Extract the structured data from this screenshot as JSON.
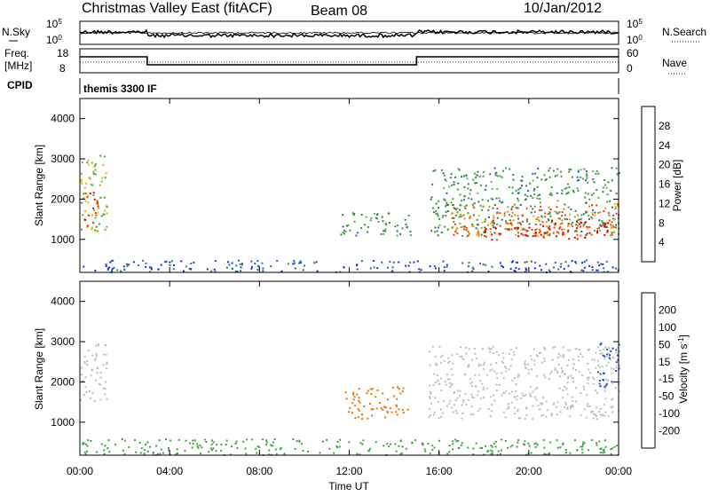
{
  "header": {
    "title": "Christmas Valley East (fitACF)",
    "beam": "Beam 08",
    "date": "10/Jan/2012"
  },
  "status_panels": {
    "nsky_label": "N.Sky",
    "nsky_ticks": [
      "10^5",
      "10^0"
    ],
    "nsearch_label": "N.Search",
    "nsearch_ticks": [
      "10^5",
      "10^0"
    ],
    "freq_label_1": "Freq.",
    "freq_label_2": "[MHz]",
    "freq_ticks": [
      "18",
      "8"
    ],
    "nave_label": "Nave",
    "nave_ticks": [
      "60",
      "0"
    ],
    "cpid_label": "CPID",
    "cpid_value": "themis 3300 IF"
  },
  "colors": {
    "power_scale": [
      "#1030d8",
      "#2060c0",
      "#308050",
      "#40a040",
      "#60b840",
      "#f0b000",
      "#f08000",
      "#f04000",
      "#e00000"
    ],
    "velocity_scale": [
      "#d00000",
      "#e83000",
      "#f07000",
      "#f0a000",
      "#c0c0b8",
      "#c0c0b8",
      "#40a040",
      "#308870",
      "#2050c0",
      "#1020b0"
    ]
  },
  "chart_data": [
    {
      "type": "heatmap",
      "name": "power",
      "title": "",
      "xlabel": "Time UT",
      "ylabel": "Slant Range [km]",
      "x_ticks": [
        "00:00",
        "04:00",
        "08:00",
        "12:00",
        "16:00",
        "20:00",
        "00:00"
      ],
      "y_ticks": [
        "1000",
        "2000",
        "3000",
        "4000"
      ],
      "y_range": [
        180,
        4500
      ],
      "colorbar_label": "Power [dB]",
      "colorbar_ticks": [
        "4",
        "8",
        "12",
        "16",
        "20",
        "24",
        "28"
      ],
      "colorbar_range": [
        0,
        30
      ],
      "regions": [
        {
          "t0": 0.0,
          "t1": 1.2,
          "r0": 1100,
          "r1": 3100,
          "v": 16
        },
        {
          "t0": 0.1,
          "t1": 0.8,
          "r0": 1300,
          "r1": 2200,
          "v": 26
        },
        {
          "t0": 11.6,
          "t1": 14.8,
          "r0": 1100,
          "r1": 1700,
          "v": 10
        },
        {
          "t0": 15.6,
          "t1": 24.0,
          "r0": 1100,
          "r1": 2800,
          "v": 10
        },
        {
          "t0": 16.5,
          "t1": 24.0,
          "r0": 1100,
          "r1": 1900,
          "v": 22
        },
        {
          "t0": 18.0,
          "t1": 23.5,
          "r0": 1000,
          "r1": 1500,
          "v": 28
        },
        {
          "t0": 0.0,
          "t1": 24.0,
          "r0": 200,
          "r1": 500,
          "v": 4
        }
      ]
    },
    {
      "type": "heatmap",
      "name": "velocity",
      "title": "",
      "xlabel": "Time UT",
      "ylabel": "Slant Range [km]",
      "x_ticks": [
        "00:00",
        "04:00",
        "08:00",
        "12:00",
        "16:00",
        "20:00",
        "00:00"
      ],
      "y_ticks": [
        "1000",
        "2000",
        "3000",
        "4000"
      ],
      "y_range": [
        180,
        4500
      ],
      "colorbar_label": "Velocity [m s^-1]",
      "colorbar_ticks": [
        "200",
        "100",
        "50",
        "15",
        "-15",
        "-50",
        "-100",
        "-200"
      ],
      "colorbar_range": [
        -250,
        250
      ],
      "regions": [
        {
          "t0": 0.0,
          "t1": 1.2,
          "r0": 1500,
          "r1": 3000,
          "v": 0
        },
        {
          "t0": 11.8,
          "t1": 14.6,
          "r0": 1100,
          "r1": 1900,
          "v": -60
        },
        {
          "t0": 15.5,
          "t1": 24.0,
          "r0": 1100,
          "r1": 2900,
          "v": 0
        },
        {
          "t0": 23.0,
          "t1": 24.0,
          "r0": 1900,
          "r1": 3000,
          "v": 150
        },
        {
          "t0": 0.0,
          "t1": 24.0,
          "r0": 200,
          "r1": 600,
          "v": 40
        }
      ]
    }
  ]
}
